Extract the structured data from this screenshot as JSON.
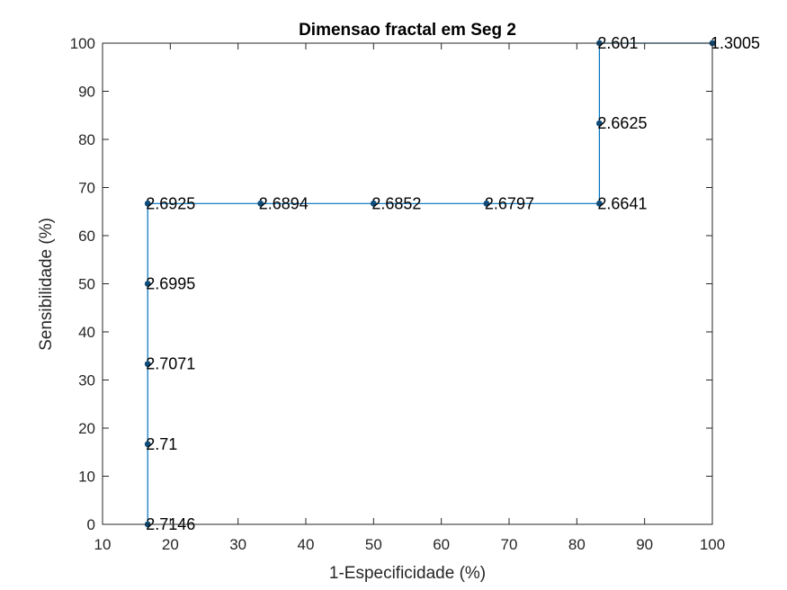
{
  "chart_data": {
    "type": "line",
    "title": "Dimensao fractal em Seg 2",
    "xlabel": "1-Especificidade (%)",
    "ylabel": "Sensibilidade (%)",
    "xlim": [
      10,
      100
    ],
    "ylim": [
      0,
      100
    ],
    "xticks": [
      10,
      20,
      30,
      40,
      50,
      60,
      70,
      80,
      90,
      100
    ],
    "yticks": [
      0,
      10,
      20,
      30,
      40,
      50,
      60,
      70,
      80,
      90,
      100
    ],
    "grid": false,
    "legend": "none",
    "line_color": "#0072BD",
    "marker_color": "#0E4C7A",
    "series": [
      {
        "points": [
          {
            "x": 16.67,
            "y": 0,
            "label": "2.7146"
          },
          {
            "x": 16.67,
            "y": 16.67,
            "label": "2.71"
          },
          {
            "x": 16.67,
            "y": 33.33,
            "label": "2.7071"
          },
          {
            "x": 16.67,
            "y": 50,
            "label": "2.6995"
          },
          {
            "x": 16.67,
            "y": 66.67,
            "label": "2.6925"
          },
          {
            "x": 33.33,
            "y": 66.67,
            "label": "2.6894"
          },
          {
            "x": 50,
            "y": 66.67,
            "label": "2.6852"
          },
          {
            "x": 66.67,
            "y": 66.67,
            "label": "2.6797"
          },
          {
            "x": 83.33,
            "y": 66.67,
            "label": "2.6641"
          },
          {
            "x": 83.33,
            "y": 83.33,
            "label": "2.6625"
          },
          {
            "x": 83.33,
            "y": 100,
            "label": "2.601"
          },
          {
            "x": 100,
            "y": 100,
            "label": "1.3005"
          }
        ]
      }
    ]
  }
}
